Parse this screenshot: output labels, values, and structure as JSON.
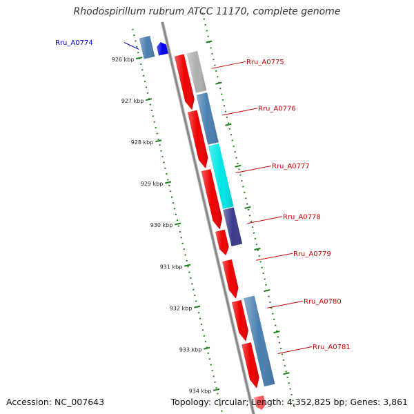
{
  "title": "Rhodospirillum rubrum ATCC 11170, complete genome",
  "footer": {
    "accession": "Accession: NC_007643",
    "stats": "Topology: circular; Length: 4,352,825 bp; Genes: 3,861"
  },
  "colors": {
    "backbone": "#888888",
    "tick": "#1a7f1a",
    "forward_label": "#cc0000",
    "reverse_label": "#0000cc"
  },
  "ticks": [
    {
      "kbp": 926,
      "label": "926 kbp"
    },
    {
      "kbp": 927,
      "label": "927 kbp"
    },
    {
      "kbp": 928,
      "label": "928 kbp"
    },
    {
      "kbp": 929,
      "label": "929 kbp"
    },
    {
      "kbp": 930,
      "label": "930 kbp"
    },
    {
      "kbp": 931,
      "label": "931 kbp"
    },
    {
      "kbp": 932,
      "label": "932 kbp"
    },
    {
      "kbp": 933,
      "label": "933 kbp"
    },
    {
      "kbp": 934,
      "label": "934 kbp"
    }
  ],
  "cds": [
    {
      "strand": "reverse",
      "start_kbp": 925.75,
      "end_kbp": 926.05,
      "color": "#0000ee"
    },
    {
      "strand": "forward",
      "start_kbp": 926.15,
      "end_kbp": 927.47,
      "color": "#ee0000"
    },
    {
      "strand": "forward",
      "start_kbp": 927.5,
      "end_kbp": 928.88,
      "color": "#ee0000"
    },
    {
      "strand": "forward",
      "start_kbp": 928.92,
      "end_kbp": 930.35,
      "color": "#ee0000"
    },
    {
      "strand": "forward",
      "start_kbp": 930.38,
      "end_kbp": 930.98,
      "color": "#ee0000"
    },
    {
      "strand": "forward",
      "start_kbp": 931.1,
      "end_kbp": 932.02,
      "color": "#ee0000"
    },
    {
      "strand": "forward",
      "start_kbp": 932.08,
      "end_kbp": 933.05,
      "color": "#ee0000"
    },
    {
      "strand": "forward",
      "start_kbp": 933.1,
      "end_kbp": 934.18,
      "color": "#ee0000"
    },
    {
      "strand": "forward",
      "start_kbp": 934.38,
      "end_kbp": 934.7,
      "color": "#ff5555"
    }
  ],
  "genes": [
    {
      "name": "Rru_A0774",
      "strand": "reverse",
      "start_kbp": 925.55,
      "end_kbp": 926.05,
      "color": "#4a7fb0"
    },
    {
      "name": "Rru_A0775",
      "strand": "forward",
      "start_kbp": 926.15,
      "end_kbp": 927.1,
      "color": "#b0b0b0"
    },
    {
      "name": "Rru_A0776",
      "strand": "forward",
      "start_kbp": 927.15,
      "end_kbp": 928.35,
      "color": "#4a7fb0"
    },
    {
      "name": "Rru_A0777",
      "strand": "forward",
      "start_kbp": 928.38,
      "end_kbp": 929.9,
      "color": "#00e5e5"
    },
    {
      "name": "Rru_A0778",
      "strand": "forward",
      "start_kbp": 929.92,
      "end_kbp": 930.8,
      "color": "#3a3a8c"
    },
    {
      "name": "Rru_A0779",
      "strand": "forward",
      "start_kbp": 931.1,
      "end_kbp": 931.1,
      "color": "#4a7fb0"
    },
    {
      "name": "Rru_A0780",
      "strand": "forward",
      "start_kbp": 932.05,
      "end_kbp": 934.18,
      "color": "#4a7fb0"
    },
    {
      "name": "Rru_A0781",
      "strand": "forward",
      "start_kbp": 932.05,
      "end_kbp": 934.18,
      "color": "#4a7fb0"
    }
  ]
}
